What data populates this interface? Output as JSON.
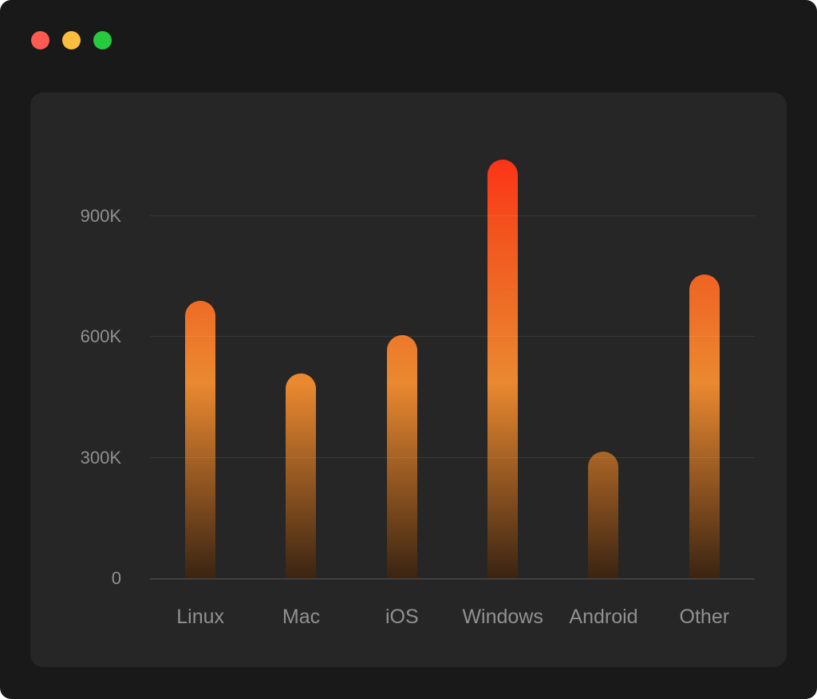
{
  "window": {
    "traffic_lights": [
      {
        "name": "close-button",
        "color": "#fd5a52"
      },
      {
        "name": "minimize-button",
        "color": "#fdbd3e"
      },
      {
        "name": "zoom-button",
        "color": "#27c93f"
      }
    ]
  },
  "colors": {
    "page_background": "#191919",
    "panel_background": "#262626",
    "axis_label": "#8f8f8f",
    "gridline": "rgba(255,255,255,0.08)",
    "axis_line": "rgba(255,255,255,0.22)",
    "bar_gradient_top": "#ff2c15",
    "bar_gradient_upper_mid": "#f1571f",
    "bar_gradient_mid": "#ea8930",
    "bar_gradient_bottom": "#3a2412"
  },
  "chart_data": {
    "type": "bar",
    "title": "",
    "xlabel": "",
    "ylabel": "",
    "categories": [
      "Linux",
      "Mac",
      "iOS",
      "Windows",
      "Android",
      "Other"
    ],
    "values": [
      690000,
      510000,
      605000,
      1040000,
      315000,
      755000
    ],
    "ylim": [
      0,
      1080000
    ],
    "yticks": [
      {
        "value": 0,
        "label": "0"
      },
      {
        "value": 300000,
        "label": "300K"
      },
      {
        "value": 600000,
        "label": "600K"
      },
      {
        "value": 900000,
        "label": "900K"
      }
    ],
    "grid": true,
    "legend": false
  }
}
